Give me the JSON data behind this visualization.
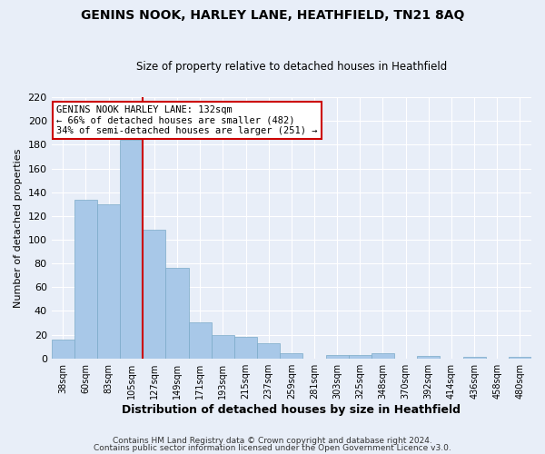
{
  "title": "GENINS NOOK, HARLEY LANE, HEATHFIELD, TN21 8AQ",
  "subtitle": "Size of property relative to detached houses in Heathfield",
  "xlabel": "Distribution of detached houses by size in Heathfield",
  "ylabel": "Number of detached properties",
  "bar_color": "#a8c8e8",
  "bar_edge_color": "#7aaac8",
  "vline_color": "#cc0000",
  "annotation_title": "GENINS NOOK HARLEY LANE: 132sqm",
  "annotation_line1": "← 66% of detached houses are smaller (482)",
  "annotation_line2": "34% of semi-detached houses are larger (251) →",
  "categories": [
    "38sqm",
    "60sqm",
    "83sqm",
    "105sqm",
    "127sqm",
    "149sqm",
    "171sqm",
    "193sqm",
    "215sqm",
    "237sqm",
    "259sqm",
    "281sqm",
    "303sqm",
    "325sqm",
    "348sqm",
    "370sqm",
    "392sqm",
    "414sqm",
    "436sqm",
    "458sqm",
    "480sqm"
  ],
  "values": [
    16,
    134,
    130,
    184,
    108,
    76,
    30,
    20,
    18,
    13,
    4,
    0,
    3,
    3,
    4,
    0,
    2,
    0,
    1,
    0,
    1
  ],
  "ylim": [
    0,
    220
  ],
  "yticks": [
    0,
    20,
    40,
    60,
    80,
    100,
    120,
    140,
    160,
    180,
    200,
    220
  ],
  "footer1": "Contains HM Land Registry data © Crown copyright and database right 2024.",
  "footer2": "Contains public sector information licensed under the Open Government Licence v3.0.",
  "bg_color": "#e8eef8",
  "grid_color": "#ffffff",
  "vline_index": 3.5
}
